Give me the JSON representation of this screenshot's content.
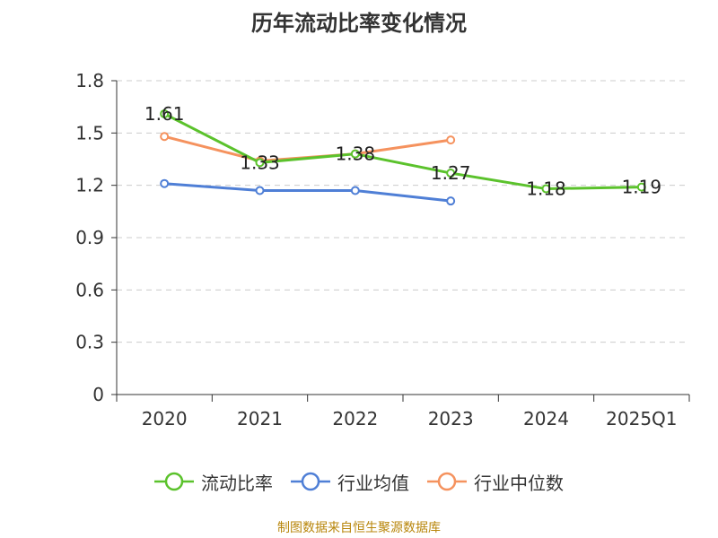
{
  "chart_data": {
    "type": "line",
    "title": "历年流动比率变化情况",
    "categories": [
      "2020",
      "2021",
      "2022",
      "2023",
      "2024",
      "2025Q1"
    ],
    "y_ticks": [
      "0",
      "0.3",
      "0.6",
      "0.9",
      "1.2",
      "1.5",
      "1.8"
    ],
    "ylim": [
      0,
      1.8
    ],
    "grid": true,
    "legend_position": "bottom",
    "series": [
      {
        "name": "流动比率",
        "color": "#5bc22c",
        "values": [
          1.61,
          1.33,
          1.38,
          1.27,
          1.18,
          1.19
        ],
        "labels": [
          "1.61",
          "1.33",
          "1.38",
          "1.27",
          "1.18",
          "1.19"
        ]
      },
      {
        "name": "行业均值",
        "color": "#4f7fd6",
        "values": [
          1.21,
          1.17,
          1.17,
          1.11,
          null,
          null
        ]
      },
      {
        "name": "行业中位数",
        "color": "#f5925e",
        "values": [
          1.48,
          1.34,
          1.38,
          1.46,
          null,
          null
        ]
      }
    ]
  },
  "source": "制图数据来自恒生聚源数据库"
}
